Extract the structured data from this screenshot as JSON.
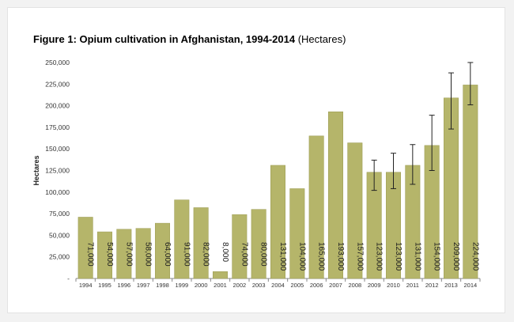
{
  "figure": {
    "title": "Figure 1: Opium cultivation in Afghanistan, 1994-2014",
    "unit": "(Hectares)"
  },
  "colors": {
    "bar": "#b5b56a",
    "bar_stroke": "#9c9c55",
    "error_bar": "#222222",
    "axis": "#888888"
  },
  "chart_data": {
    "type": "bar",
    "title": "Figure 1: Opium cultivation in Afghanistan, 1994-2014 (Hectares)",
    "xlabel": "",
    "ylabel": "Hectares",
    "ylim": [
      0,
      250000
    ],
    "grid": false,
    "y_ticks": [
      0,
      25000,
      50000,
      75000,
      100000,
      125000,
      150000,
      175000,
      200000,
      225000,
      250000
    ],
    "y_tick_labels": [
      "-",
      "25,000",
      "50,000",
      "75,000",
      "100,000",
      "125,000",
      "150,000",
      "175,000",
      "200,000",
      "225,000",
      "250,000"
    ],
    "categories": [
      "1994",
      "1995",
      "1996",
      "1997",
      "1998",
      "1999",
      "2000",
      "2001",
      "2002",
      "2003",
      "2004",
      "2005",
      "2006",
      "2007",
      "2008",
      "2009",
      "2010",
      "2011",
      "2012",
      "2013",
      "2014"
    ],
    "values": [
      71000,
      54000,
      57000,
      58000,
      64000,
      91000,
      82000,
      8000,
      74000,
      80000,
      131000,
      104000,
      165000,
      193000,
      157000,
      123000,
      123000,
      131000,
      154000,
      209000,
      224000
    ],
    "data_labels": [
      "71,000",
      "54,000",
      "57,000",
      "58,000",
      "64,000",
      "91,000",
      "82,000",
      "8,000",
      "74,000",
      "80,000",
      "131,000",
      "104,000",
      "165,000",
      "193,000",
      "157,000",
      "123,000",
      "123,000",
      "131,000",
      "154,000",
      "209,000",
      "224,000"
    ],
    "error_bars": [
      {
        "category": "2009",
        "low": 102000,
        "high": 137000
      },
      {
        "category": "2010",
        "low": 104000,
        "high": 145000
      },
      {
        "category": "2011",
        "low": 109000,
        "high": 155000
      },
      {
        "category": "2012",
        "low": 125000,
        "high": 189000
      },
      {
        "category": "2013",
        "low": 173000,
        "high": 238000
      },
      {
        "category": "2014",
        "low": 201000,
        "high": 250000
      }
    ]
  }
}
